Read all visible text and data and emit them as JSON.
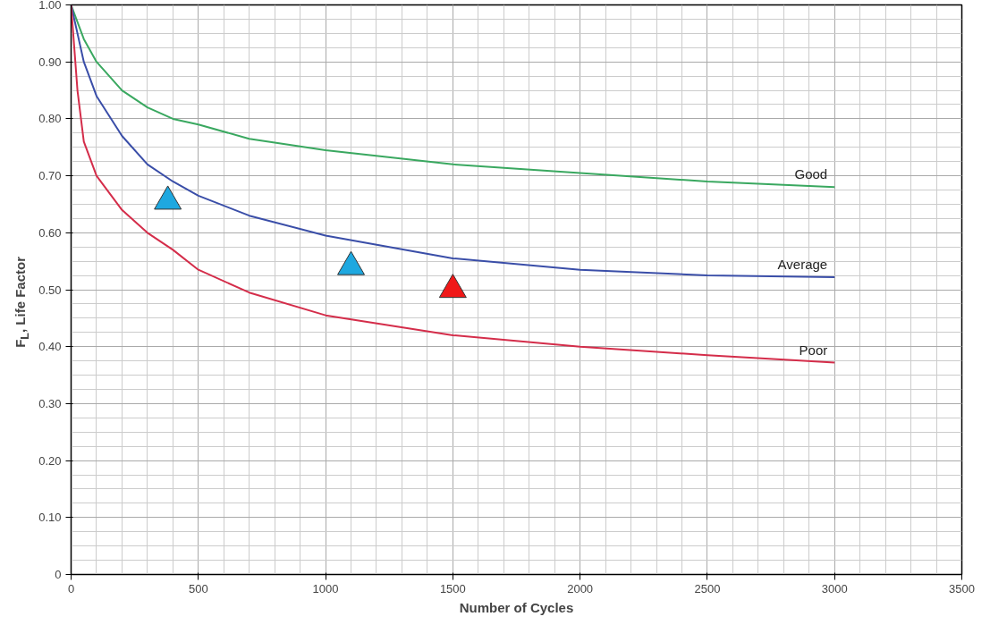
{
  "chart_data": {
    "type": "line",
    "xlabel": "Number of Cycles",
    "ylabel": "F$_{L}$, Life Factor",
    "xlim": [
      0,
      3500
    ],
    "ylim": [
      0,
      1
    ],
    "xticks": [
      0,
      500,
      1000,
      1500,
      2000,
      2500,
      3000,
      3500
    ],
    "yticks": [
      0,
      {
        "value": 0.1,
        "label": "0.10"
      },
      {
        "value": 0.2,
        "label": "0.20"
      },
      {
        "value": 0.3,
        "label": "0.30"
      },
      {
        "value": 0.4,
        "label": "0.40"
      },
      {
        "value": 0.5,
        "label": "0.50"
      },
      {
        "value": 0.6,
        "label": "0.60"
      },
      {
        "value": 0.7,
        "label": "0.70"
      },
      {
        "value": 0.8,
        "label": "0.80"
      },
      {
        "value": 0.9,
        "label": "0.90"
      },
      {
        "value": 1,
        "label": "1.00"
      }
    ],
    "grid": true,
    "marker": "none",
    "line_style": "solid",
    "series": [
      {
        "name": "Good",
        "color": "#3aa860",
        "x": [
          0,
          50,
          100,
          200,
          300,
          400,
          500,
          700,
          1000,
          1500,
          2000,
          2500,
          3000
        ],
        "values": [
          1.0,
          0.94,
          0.9,
          0.85,
          0.82,
          0.8,
          0.79,
          0.765,
          0.745,
          0.72,
          0.705,
          0.69,
          0.68
        ]
      },
      {
        "name": "Average",
        "color": "#3a4ea8",
        "x": [
          0,
          50,
          100,
          200,
          300,
          400,
          500,
          700,
          1000,
          1500,
          2000,
          2500,
          3000
        ],
        "values": [
          1.0,
          0.9,
          0.84,
          0.77,
          0.72,
          0.69,
          0.665,
          0.63,
          0.595,
          0.555,
          0.535,
          0.525,
          0.522
        ]
      },
      {
        "name": "Poor",
        "color": "#d42d4a",
        "x": [
          0,
          25,
          50,
          100,
          200,
          300,
          400,
          500,
          700,
          1000,
          1500,
          2000,
          2500,
          3000
        ],
        "values": [
          1.0,
          0.85,
          0.76,
          0.7,
          0.64,
          0.6,
          0.57,
          0.535,
          0.495,
          0.455,
          0.42,
          0.4,
          0.385,
          0.372
        ]
      },
      {
        "type": "scatter",
        "marker": "triangle",
        "color": "#1ea8e0",
        "x": [
          380,
          1100
        ],
        "values": [
          0.655,
          0.54
        ]
      },
      {
        "type": "scatter",
        "marker": "triangle",
        "color": "#f01818",
        "x": [
          1500
        ],
        "values": [
          0.5
        ]
      }
    ]
  }
}
